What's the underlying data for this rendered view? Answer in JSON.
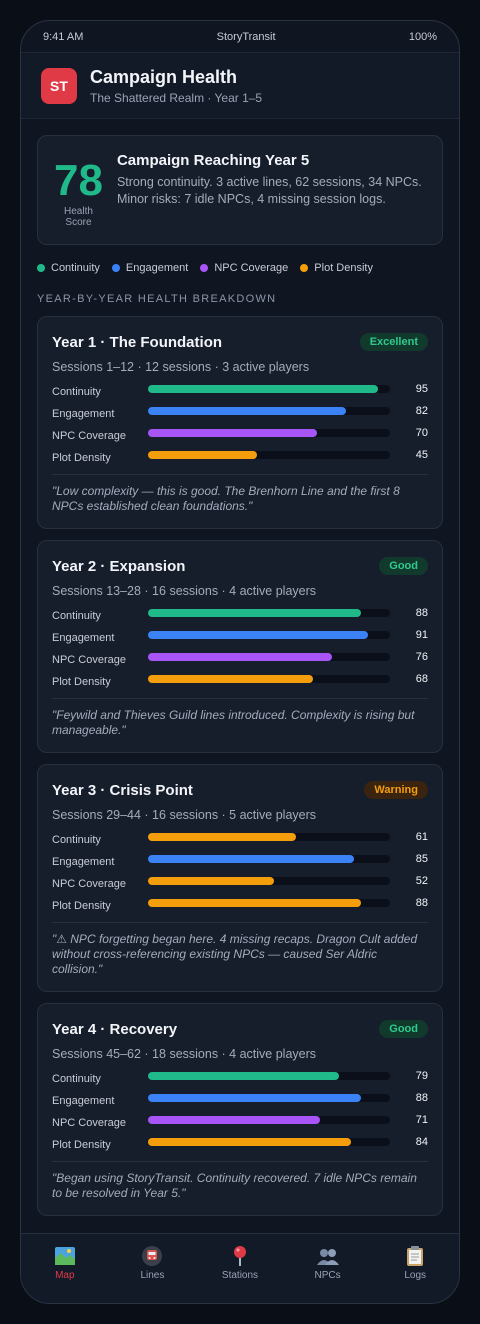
{
  "status_bar": {
    "time": "9:41 AM",
    "carrier": "StoryTransit",
    "battery": "100%"
  },
  "header": {
    "logo_text": "ST",
    "title": "Campaign Health",
    "subtitle": "The Shattered Realm · Year 1–5"
  },
  "score": {
    "value": "78",
    "label": "Health Score",
    "title": "Campaign Reaching Year 5",
    "description": "Strong continuity. 3 active lines, 62 sessions, 34 NPCs. Minor risks: 7 idle NPCs, 4 missing session logs."
  },
  "legend": [
    {
      "label": "Continuity",
      "color": "#1fb98a"
    },
    {
      "label": "Engagement",
      "color": "#3b82f6"
    },
    {
      "label": "NPC Coverage",
      "color": "#a855f7"
    },
    {
      "label": "Plot Density",
      "color": "#f59e0b"
    }
  ],
  "section_title": "YEAR-BY-YEAR HEALTH BREAKDOWN",
  "years": [
    {
      "title": "Year 1 · The Foundation",
      "badge": "Excellent",
      "meta": "Sessions 1–12 · 12 sessions · 3 active players",
      "metrics": [
        {
          "label": "Continuity",
          "value": "95",
          "level": 95,
          "color": "#1fb98a"
        },
        {
          "label": "Engagement",
          "value": "82",
          "level": 82,
          "color": "#3b82f6"
        },
        {
          "label": "NPC Coverage",
          "value": "70",
          "level": 70,
          "color": "#a855f7"
        },
        {
          "label": "Plot Density",
          "value": "45",
          "level": 45,
          "color": "#f59e0b"
        }
      ],
      "note": "\"Low complexity — this is good. The Brenhorn Line and the first 8 NPCs established clean foundations.\""
    },
    {
      "title": "Year 2 · Expansion",
      "badge": "Good",
      "meta": "Sessions 13–28 · 16 sessions · 4 active players",
      "metrics": [
        {
          "label": "Continuity",
          "value": "88",
          "level": 88,
          "color": "#1fb98a"
        },
        {
          "label": "Engagement",
          "value": "91",
          "level": 91,
          "color": "#3b82f6"
        },
        {
          "label": "NPC Coverage",
          "value": "76",
          "level": 76,
          "color": "#a855f7"
        },
        {
          "label": "Plot Density",
          "value": "68",
          "level": 68,
          "color": "#f59e0b"
        }
      ],
      "note": "\"Feywild and Thieves Guild lines introduced. Complexity is rising but manageable.\""
    },
    {
      "title": "Year 3 · Crisis Point",
      "badge": "Warning",
      "meta": "Sessions 29–44 · 16 sessions · 5 active players",
      "metrics": [
        {
          "label": "Continuity",
          "value": "61",
          "level": 61,
          "color": "#f59e0b"
        },
        {
          "label": "Engagement",
          "value": "85",
          "level": 85,
          "color": "#3b82f6"
        },
        {
          "label": "NPC Coverage",
          "value": "52",
          "level": 52,
          "color": "#f59e0b"
        },
        {
          "label": "Plot Density",
          "value": "88",
          "level": 88,
          "color": "#f59e0b"
        }
      ],
      "note": "\"⚠ NPC forgetting began here. 4 missing recaps. Dragon Cult added without cross-referencing existing NPCs — caused Ser Aldric collision.\""
    },
    {
      "title": "Year 4 · Recovery",
      "badge": "Good",
      "meta": "Sessions 45–62 · 18 sessions · 4 active players",
      "metrics": [
        {
          "label": "Continuity",
          "value": "79",
          "level": 79,
          "color": "#1fb98a"
        },
        {
          "label": "Engagement",
          "value": "88",
          "level": 88,
          "color": "#3b82f6"
        },
        {
          "label": "NPC Coverage",
          "value": "71",
          "level": 71,
          "color": "#a855f7"
        },
        {
          "label": "Plot Density",
          "value": "84",
          "level": 84,
          "color": "#f59e0b"
        }
      ],
      "note": "\"Began using StoryTransit. Continuity recovered. 7 idle NPCs remain to be resolved in Year 5.\""
    }
  ],
  "tabs": [
    {
      "label": "Map",
      "icon": "map-icon",
      "active": true
    },
    {
      "label": "Lines",
      "icon": "train-icon",
      "active": false
    },
    {
      "label": "Stations",
      "icon": "pin-icon",
      "active": false
    },
    {
      "label": "NPCs",
      "icon": "people-icon",
      "active": false
    },
    {
      "label": "Logs",
      "icon": "clipboard-icon",
      "active": false
    }
  ]
}
